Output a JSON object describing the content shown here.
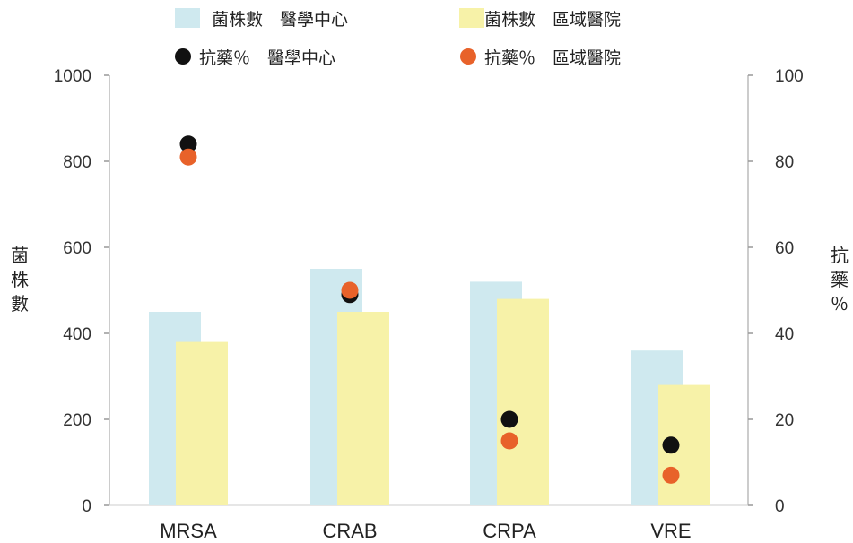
{
  "chart_data": {
    "type": "bar",
    "categories": [
      "MRSA",
      "CRAB",
      "CRPA",
      "VRE"
    ],
    "bar_series": [
      {
        "name": "菌株數　醫學中心",
        "values": [
          450,
          550,
          520,
          360
        ],
        "color": "#cfe9ef"
      },
      {
        "name": "菌株數　區域醫院",
        "values": [
          380,
          450,
          480,
          280
        ],
        "color": "#f7f2a8"
      }
    ],
    "point_series": [
      {
        "name": "抗藥％　醫學中心",
        "values": [
          84,
          49,
          20,
          14
        ],
        "color": "#111111"
      },
      {
        "name": "抗藥％　區域醫院",
        "values": [
          81,
          50,
          15,
          7
        ],
        "color": "#e8622a"
      }
    ],
    "ylabel": "菌株數",
    "y2label": "抗藥％",
    "ylim": [
      0,
      1000
    ],
    "y2lim": [
      0,
      100
    ],
    "yticks": [
      "0",
      "200",
      "400",
      "600",
      "800",
      "1000"
    ],
    "y2ticks": [
      "0",
      "20",
      "40",
      "60",
      "80",
      "100"
    ],
    "grid": false,
    "legend_position": "top"
  }
}
